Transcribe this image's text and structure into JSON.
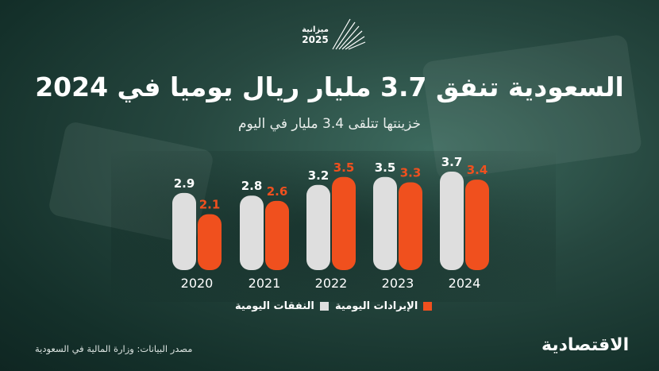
{
  "header": {
    "logo_text": "ميزانية 2025",
    "title": "السعودية تنفق 3.7 مليار ريال يوميا في 2024",
    "subtitle": "خزينتها تتلقى 3.4 مليار في اليوم"
  },
  "colors": {
    "spending": "#dedede",
    "revenue": "#f0501e"
  },
  "chart_data": {
    "type": "bar",
    "title": "السعودية تنفق 3.7 مليار ريال يوميا في 2024",
    "subtitle": "خزينتها تتلقى 3.4 مليار في اليوم",
    "categories": [
      "2020",
      "2021",
      "2022",
      "2023",
      "2024"
    ],
    "series": [
      {
        "name": "النفقات اليومية",
        "values": [
          2.9,
          2.8,
          3.2,
          3.5,
          3.7
        ]
      },
      {
        "name": "الإيرادات اليومية",
        "values": [
          2.1,
          2.6,
          3.5,
          3.3,
          3.4
        ]
      }
    ],
    "legend_position": "bottom"
  },
  "legend": {
    "spending": "النفقات اليومية",
    "revenue": "الإيرادات اليومية"
  },
  "footer": {
    "source": "مصدر البيانات: وزارة المالية في السعودية",
    "brand": "الاقتصادية"
  }
}
